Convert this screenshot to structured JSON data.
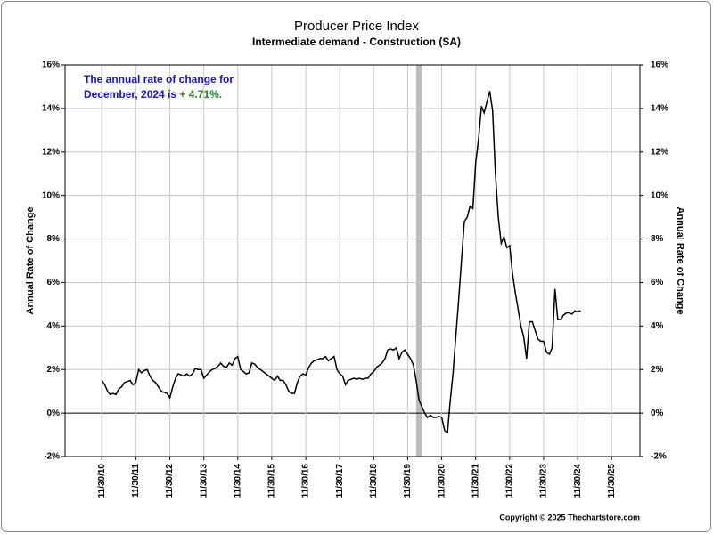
{
  "chart_data": {
    "type": "line",
    "title": "Producer Price Index",
    "subtitle": "Intermediate demand - Construction (SA)",
    "y_label": "Annual Rate of Change",
    "y2_label": "Annual Rate of Change",
    "annotation": {
      "line1": "The annual rate of change for",
      "line2": "December, 2024 is",
      "value_label": "+ 4.71%."
    },
    "copyright": "Copyright © 2025 Thechartstore.com",
    "recession": [
      "2020-02",
      "2020-04"
    ],
    "x": [
      "2010-11",
      "2010-12",
      "2011-01",
      "2011-02",
      "2011-03",
      "2011-04",
      "2011-05",
      "2011-06",
      "2011-07",
      "2011-08",
      "2011-09",
      "2011-10",
      "2011-11",
      "2011-12",
      "2012-01",
      "2012-02",
      "2012-03",
      "2012-04",
      "2012-05",
      "2012-06",
      "2012-07",
      "2012-08",
      "2012-09",
      "2012-10",
      "2012-11",
      "2012-12",
      "2013-01",
      "2013-02",
      "2013-03",
      "2013-04",
      "2013-05",
      "2013-06",
      "2013-07",
      "2013-08",
      "2013-09",
      "2013-10",
      "2013-11",
      "2013-12",
      "2014-01",
      "2014-02",
      "2014-03",
      "2014-04",
      "2014-05",
      "2014-06",
      "2014-07",
      "2014-08",
      "2014-09",
      "2014-10",
      "2014-11",
      "2014-12",
      "2015-01",
      "2015-02",
      "2015-03",
      "2015-04",
      "2015-05",
      "2015-06",
      "2015-07",
      "2015-08",
      "2015-09",
      "2015-10",
      "2015-11",
      "2015-12",
      "2016-01",
      "2016-02",
      "2016-03",
      "2016-04",
      "2016-05",
      "2016-06",
      "2016-07",
      "2016-08",
      "2016-09",
      "2016-10",
      "2016-11",
      "2016-12",
      "2017-01",
      "2017-02",
      "2017-03",
      "2017-04",
      "2017-05",
      "2017-06",
      "2017-07",
      "2017-08",
      "2017-09",
      "2017-10",
      "2017-11",
      "2017-12",
      "2018-01",
      "2018-02",
      "2018-03",
      "2018-04",
      "2018-05",
      "2018-06",
      "2018-07",
      "2018-08",
      "2018-09",
      "2018-10",
      "2018-11",
      "2018-12",
      "2019-01",
      "2019-02",
      "2019-03",
      "2019-04",
      "2019-05",
      "2019-06",
      "2019-07",
      "2019-08",
      "2019-09",
      "2019-10",
      "2019-11",
      "2019-12",
      "2020-01",
      "2020-02",
      "2020-03",
      "2020-04",
      "2020-05",
      "2020-06",
      "2020-07",
      "2020-08",
      "2020-09",
      "2020-10",
      "2020-11",
      "2020-12",
      "2021-01",
      "2021-02",
      "2021-03",
      "2021-04",
      "2021-05",
      "2021-06",
      "2021-07",
      "2021-08",
      "2021-09",
      "2021-10",
      "2021-11",
      "2021-12",
      "2022-01",
      "2022-02",
      "2022-03",
      "2022-04",
      "2022-05",
      "2022-06",
      "2022-07",
      "2022-08",
      "2022-09",
      "2022-10",
      "2022-11",
      "2022-12",
      "2023-01",
      "2023-02",
      "2023-03",
      "2023-04",
      "2023-05",
      "2023-06",
      "2023-07",
      "2023-08",
      "2023-09",
      "2023-10",
      "2023-11",
      "2023-12",
      "2024-01",
      "2024-02",
      "2024-03",
      "2024-04",
      "2024-05",
      "2024-06",
      "2024-07",
      "2024-08",
      "2024-09",
      "2024-10",
      "2024-11",
      "2024-12"
    ],
    "series": [
      {
        "name": "Annual Rate of Change",
        "color": "#000000",
        "values": [
          1.5,
          1.3,
          1.0,
          0.85,
          0.9,
          0.85,
          1.1,
          1.2,
          1.4,
          1.45,
          1.5,
          1.3,
          1.4,
          2.0,
          1.85,
          1.95,
          2.0,
          1.7,
          1.5,
          1.4,
          1.2,
          1.0,
          0.95,
          0.9,
          0.7,
          1.2,
          1.6,
          1.8,
          1.75,
          1.7,
          1.8,
          1.7,
          1.8,
          2.05,
          2.0,
          2.0,
          1.6,
          1.75,
          1.9,
          2.0,
          2.05,
          2.15,
          2.3,
          2.15,
          2.1,
          2.3,
          2.2,
          2.5,
          2.6,
          2.0,
          1.9,
          1.8,
          1.85,
          2.3,
          2.25,
          2.1,
          2.0,
          1.9,
          1.8,
          1.7,
          1.6,
          1.5,
          1.7,
          1.5,
          1.5,
          1.3,
          1.0,
          0.9,
          0.9,
          1.4,
          1.7,
          1.8,
          1.75,
          2.1,
          2.3,
          2.4,
          2.45,
          2.5,
          2.5,
          2.6,
          2.4,
          2.5,
          2.6,
          2.0,
          1.8,
          1.7,
          1.3,
          1.5,
          1.55,
          1.6,
          1.55,
          1.6,
          1.55,
          1.6,
          1.6,
          1.8,
          1.9,
          2.1,
          2.2,
          2.3,
          2.5,
          2.9,
          2.95,
          2.9,
          3.0,
          2.5,
          2.8,
          2.9,
          2.7,
          2.5,
          2.2,
          1.5,
          0.6,
          0.3,
          0.0,
          -0.2,
          -0.1,
          -0.2,
          -0.2,
          -0.15,
          -0.2,
          -0.8,
          -0.9,
          0.5,
          1.8,
          3.5,
          5.2,
          7.0,
          8.8,
          9.0,
          9.5,
          9.4,
          11.5,
          12.6,
          14.1,
          13.8,
          14.3,
          14.8,
          13.9,
          11.0,
          9.0,
          7.8,
          8.1,
          7.6,
          7.7,
          6.4,
          5.5,
          4.8,
          4.0,
          3.5,
          2.5,
          4.2,
          4.2,
          3.8,
          3.4,
          3.3,
          3.3,
          2.8,
          2.7,
          3.0,
          5.7,
          4.3,
          4.3,
          4.5,
          4.6,
          4.6,
          4.55,
          4.7,
          4.65,
          4.71
        ]
      }
    ],
    "xlim": [
      "2009-10",
      "2026-09"
    ],
    "xticks": [
      {
        "value": "2010-11-30",
        "label": "11/30/10"
      },
      {
        "value": "2011-11-30",
        "label": "11/30/11"
      },
      {
        "value": "2012-11-30",
        "label": "11/30/12"
      },
      {
        "value": "2013-11-30",
        "label": "11/30/13"
      },
      {
        "value": "2014-11-30",
        "label": "11/30/14"
      },
      {
        "value": "2015-11-30",
        "label": "11/30/15"
      },
      {
        "value": "2016-11-30",
        "label": "11/30/16"
      },
      {
        "value": "2017-11-30",
        "label": "11/30/17"
      },
      {
        "value": "2018-11-30",
        "label": "11/30/18"
      },
      {
        "value": "2019-11-30",
        "label": "11/30/19"
      },
      {
        "value": "2020-11-30",
        "label": "11/30/20"
      },
      {
        "value": "2021-11-30",
        "label": "11/30/21"
      },
      {
        "value": "2022-11-30",
        "label": "11/30/22"
      },
      {
        "value": "2023-11-30",
        "label": "11/30/23"
      },
      {
        "value": "2024-11-30",
        "label": "11/30/24"
      },
      {
        "value": "2025-11-30",
        "label": "11/30/25"
      }
    ],
    "ylim": [
      -2,
      16
    ],
    "yticks": [
      {
        "value": -2,
        "label": "-2%"
      },
      {
        "value": 0,
        "label": "0%"
      },
      {
        "value": 2,
        "label": "2%"
      },
      {
        "value": 4,
        "label": "4%"
      },
      {
        "value": 6,
        "label": "6%"
      },
      {
        "value": 8,
        "label": "8%"
      },
      {
        "value": 10,
        "label": "10%"
      },
      {
        "value": 12,
        "label": "12%"
      },
      {
        "value": 14,
        "label": "14%"
      },
      {
        "value": 16,
        "label": "16%"
      }
    ],
    "y2lim": [
      -2,
      16
    ],
    "y2ticks": [
      {
        "value": -2,
        "label": "-2%"
      },
      {
        "value": 0,
        "label": "0%"
      },
      {
        "value": 2,
        "label": "2%"
      },
      {
        "value": 4,
        "label": "4%"
      },
      {
        "value": 6,
        "label": "6%"
      },
      {
        "value": 8,
        "label": "8%"
      },
      {
        "value": 10,
        "label": "10%"
      },
      {
        "value": 12,
        "label": "12%"
      },
      {
        "value": 14,
        "label": "14%"
      },
      {
        "value": 16,
        "label": "16%"
      }
    ],
    "grid": true
  }
}
